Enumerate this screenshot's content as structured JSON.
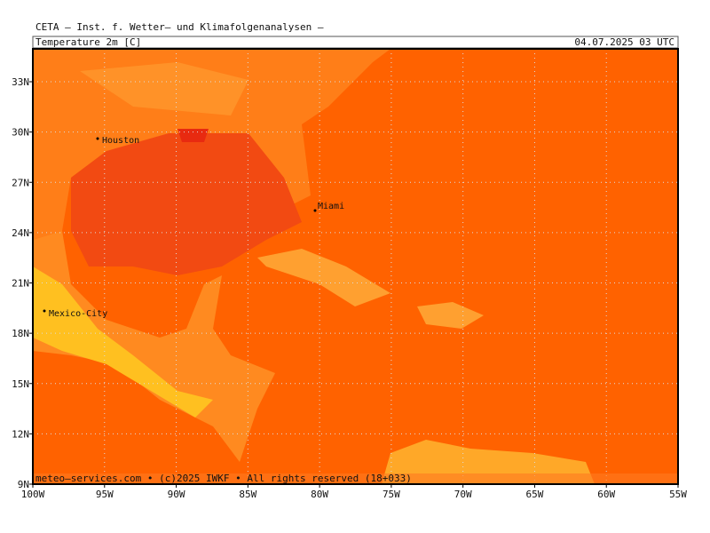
{
  "header": {
    "title": "CETA — Inst. f. Wetter— und Klimafolgenanalysen —",
    "variable": "Temperature 2m [C]",
    "datetime": "04.07.2025 03 UTC"
  },
  "map": {
    "lat_labels": [
      "33N",
      "30N",
      "27N",
      "24N",
      "21N",
      "18N",
      "15N",
      "12N",
      "9N"
    ],
    "lon_labels": [
      "100W",
      "95W",
      "90W",
      "85W",
      "80W",
      "75W",
      "70W",
      "65W",
      "60W",
      "55W"
    ],
    "places": [
      {
        "label": "Houston"
      },
      {
        "label": "Miami"
      },
      {
        "label": "Mexico-City"
      }
    ],
    "footer": "meteo—services.com • (c)2025 IWKF • All rights reserved (18+033)"
  }
}
